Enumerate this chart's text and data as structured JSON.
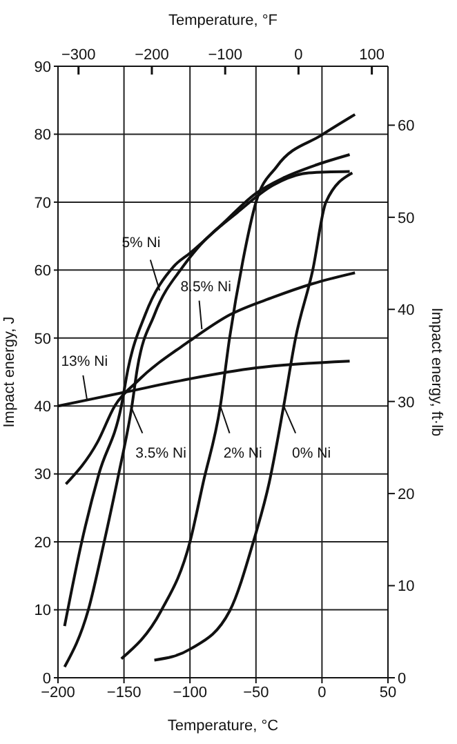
{
  "chart_data": {
    "type": "line",
    "xlabel": "Temperature, °C",
    "x2label": "Temperature, °F",
    "ylabel": "Impact energy, J",
    "y2label": "Impact energy, ft·lb",
    "xlim": [
      -200,
      50
    ],
    "xticks": [
      -200,
      -150,
      -100,
      -50,
      0,
      50
    ],
    "x2lim": [
      -328,
      122
    ],
    "x2ticks": [
      -300,
      -200,
      -100,
      0,
      100
    ],
    "ylim": [
      0,
      90
    ],
    "yticks": [
      0,
      10,
      20,
      30,
      40,
      50,
      60,
      70,
      80,
      90
    ],
    "y2lim": [
      0,
      66.4
    ],
    "y2ticks": [
      0,
      10,
      20,
      30,
      40,
      50,
      60
    ],
    "grid": true,
    "legend": false,
    "series": [
      {
        "color": "#111111",
        "x": [
          -127,
          -100,
          -70,
          -52,
          -40,
          -29,
          -20,
          -7,
          3,
          23
        ],
        "values": [
          2.6,
          4.2,
          9.8,
          20,
          28.7,
          40,
          50,
          60,
          70,
          74.3
        ]
      },
      {
        "color": "#111111",
        "x": [
          -152,
          -122,
          -100,
          -90,
          -77,
          -70,
          -60,
          -50,
          -34,
          0,
          25
        ],
        "values": [
          2.8,
          9.8,
          20,
          28.7,
          40,
          50,
          61.3,
          70,
          75.3,
          79.9,
          82.9
        ]
      },
      {
        "color": "#111111",
        "x": [
          -195,
          -177,
          -165,
          -154,
          -144,
          -140,
          -127,
          -105,
          -94,
          -64,
          -37,
          -10,
          21
        ],
        "values": [
          1.6,
          10,
          20,
          30,
          40,
          45.4,
          53.4,
          60.6,
          63.3,
          68.5,
          72.5,
          74.3,
          74.5
        ]
      },
      {
        "color": "#111111",
        "x": [
          -195,
          -182,
          -169,
          -152,
          -147,
          -134,
          -112,
          -100,
          -77,
          -50,
          -30,
          -4,
          21
        ],
        "values": [
          7.6,
          20,
          30,
          40,
          45.4,
          53.4,
          60.6,
          62.5,
          66.5,
          71.3,
          73.5,
          75.5,
          77
        ]
      },
      {
        "color": "#111111",
        "x": [
          -194,
          -170,
          -157,
          -140,
          -100,
          -70,
          -37,
          -7,
          25
        ],
        "values": [
          28.5,
          34.7,
          40,
          43.6,
          49.6,
          53.4,
          56,
          58,
          59.6
        ]
      },
      {
        "color": "#111111",
        "x": [
          -200,
          -150,
          -100,
          -50,
          21
        ],
        "values": [
          40,
          42,
          44,
          45.6,
          46.6
        ]
      }
    ],
    "annotations": [
      "0% Ni",
      "2% Ni",
      "3.5% Ni",
      "5% Ni",
      "8.5% Ni",
      "13% Ni"
    ]
  }
}
